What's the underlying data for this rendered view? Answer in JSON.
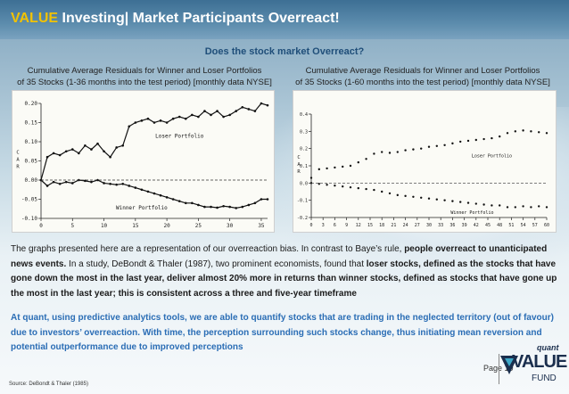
{
  "header": {
    "title_accent": "VALUE",
    "title_rest": " Investing| Market Participants Overreact!"
  },
  "subtitle": "Does the stock market Overreact?",
  "captions": {
    "left_line1": "Cumulative Average Residuals for Winner and Loser Portfolios",
    "left_line2": "of 35 Stocks (1-36 months into the test period) [monthly data NYSE]",
    "right_line1": "Cumulative Average Residuals for Winner and Loser Portfolios",
    "right_line2": "of 35 Stocks (1-60 months into the test period) [monthly data NYSE]"
  },
  "chart_data": [
    {
      "type": "line",
      "ylabel": "C A R",
      "xlim": [
        0,
        36
      ],
      "ylim": [
        -0.1,
        0.2
      ],
      "xticks": [
        "0",
        "5",
        "10",
        "15",
        "20",
        "25",
        "30",
        "35"
      ],
      "xtick_values": [
        0,
        5,
        10,
        15,
        20,
        25,
        30,
        35
      ],
      "yticks": [
        "0.20",
        "0.15",
        "0.10",
        "0.05",
        "0.00",
        "-0.05",
        "-0.10"
      ],
      "ytick_values": [
        0.2,
        0.15,
        0.1,
        0.05,
        0.0,
        -0.05,
        -0.1
      ],
      "annotations": [
        {
          "text": "Loser Portfolio",
          "x": 22,
          "y": 0.11
        },
        {
          "text": "Winner Portfolio",
          "x": 16,
          "y": -0.077
        }
      ],
      "series": [
        {
          "name": "Loser Portfolio",
          "style": "line",
          "x": [
            0,
            1,
            2,
            3,
            4,
            5,
            6,
            7,
            8,
            9,
            10,
            11,
            12,
            13,
            14,
            15,
            16,
            17,
            18,
            19,
            20,
            21,
            22,
            23,
            24,
            25,
            26,
            27,
            28,
            29,
            30,
            31,
            32,
            33,
            34,
            35,
            36
          ],
          "values": [
            0,
            0.06,
            0.07,
            0.065,
            0.075,
            0.08,
            0.07,
            0.09,
            0.08,
            0.095,
            0.075,
            0.06,
            0.085,
            0.09,
            0.14,
            0.15,
            0.155,
            0.16,
            0.15,
            0.155,
            0.15,
            0.16,
            0.165,
            0.16,
            0.17,
            0.165,
            0.18,
            0.17,
            0.18,
            0.165,
            0.17,
            0.18,
            0.19,
            0.185,
            0.18,
            0.2,
            0.195
          ]
        },
        {
          "name": "Winner Portfolio",
          "style": "line",
          "x": [
            0,
            1,
            2,
            3,
            4,
            5,
            6,
            7,
            8,
            9,
            10,
            11,
            12,
            13,
            14,
            15,
            16,
            17,
            18,
            19,
            20,
            21,
            22,
            23,
            24,
            25,
            26,
            27,
            28,
            29,
            30,
            31,
            32,
            33,
            34,
            35,
            36
          ],
          "values": [
            0,
            -0.015,
            -0.005,
            -0.01,
            -0.005,
            -0.008,
            0,
            -0.002,
            -0.005,
            0,
            -0.008,
            -0.01,
            -0.012,
            -0.01,
            -0.015,
            -0.02,
            -0.025,
            -0.03,
            -0.035,
            -0.04,
            -0.045,
            -0.05,
            -0.055,
            -0.06,
            -0.06,
            -0.065,
            -0.07,
            -0.07,
            -0.072,
            -0.068,
            -0.07,
            -0.073,
            -0.07,
            -0.065,
            -0.06,
            -0.05,
            -0.05
          ]
        },
        {
          "name": "",
          "style": "baseline",
          "x": [
            0,
            36
          ],
          "values": [
            0,
            0
          ]
        }
      ]
    },
    {
      "type": "line",
      "ylabel": "C A R",
      "xlim": [
        0,
        60
      ],
      "ylim": [
        -0.2,
        0.4
      ],
      "xticks": [
        "0",
        "3",
        "6",
        "9",
        "12",
        "15",
        "18",
        "21",
        "24",
        "27",
        "30",
        "33",
        "36",
        "39",
        "42",
        "45",
        "48",
        "51",
        "54",
        "57",
        "60"
      ],
      "xtick_values": [
        0,
        3,
        6,
        9,
        12,
        15,
        18,
        21,
        24,
        27,
        30,
        33,
        36,
        39,
        42,
        45,
        48,
        51,
        54,
        57,
        60
      ],
      "yticks": [
        "0.4",
        "0.3",
        "0.2",
        "0.1",
        "0.0",
        "-0.1",
        "-0.2"
      ],
      "ytick_values": [
        0.4,
        0.3,
        0.2,
        0.1,
        0.0,
        -0.1,
        -0.2
      ],
      "annotations": [
        {
          "text": "Loser Portfolio",
          "x": 46,
          "y": 0.15
        },
        {
          "text": "Winner Portfolio",
          "x": 41,
          "y": -0.18
        }
      ],
      "series": [
        {
          "name": "Loser Portfolio",
          "style": "dots",
          "x": [
            0,
            2,
            4,
            6,
            8,
            10,
            12,
            14,
            16,
            18,
            20,
            22,
            24,
            26,
            28,
            30,
            32,
            34,
            36,
            38,
            40,
            42,
            44,
            46,
            48,
            50,
            52,
            54,
            56,
            58,
            60
          ],
          "values": [
            0.03,
            0.08,
            0.085,
            0.09,
            0.095,
            0.1,
            0.12,
            0.14,
            0.17,
            0.18,
            0.175,
            0.18,
            0.19,
            0.195,
            0.2,
            0.21,
            0.215,
            0.22,
            0.23,
            0.24,
            0.245,
            0.25,
            0.255,
            0.26,
            0.27,
            0.29,
            0.3,
            0.305,
            0.3,
            0.295,
            0.29
          ]
        },
        {
          "name": "Winner Portfolio",
          "style": "dots",
          "x": [
            0,
            2,
            4,
            6,
            8,
            10,
            12,
            14,
            16,
            18,
            20,
            22,
            24,
            26,
            28,
            30,
            32,
            34,
            36,
            38,
            40,
            42,
            44,
            46,
            48,
            50,
            52,
            54,
            56,
            58,
            60
          ],
          "values": [
            0.0,
            -0.005,
            -0.01,
            -0.015,
            -0.02,
            -0.025,
            -0.03,
            -0.035,
            -0.04,
            -0.05,
            -0.06,
            -0.07,
            -0.075,
            -0.08,
            -0.085,
            -0.09,
            -0.095,
            -0.1,
            -0.105,
            -0.11,
            -0.115,
            -0.12,
            -0.125,
            -0.13,
            -0.13,
            -0.14,
            -0.14,
            -0.135,
            -0.14,
            -0.135,
            -0.14
          ]
        },
        {
          "name": "",
          "style": "baseline",
          "x": [
            0,
            60
          ],
          "values": [
            0,
            0
          ]
        }
      ]
    }
  ],
  "body": {
    "p1_a": "The graphs presented here are a representation of our overreaction bias. In contrast to Baye’s rule, ",
    "p1_b": "people overreact to unanticipated news events.",
    "p1_c": " In a study, DeBondt & Thaler (1987), two prominent economists, found that ",
    "p1_d": "loser stocks, defined as the stocks that have gone down the most in the last year, deliver almost 20% more in returns than winner stocks, defined as stocks that have gone up the most in the last year; this is consistent across a three and five-year timeframe",
    "p2": "At quant, using predictive analytics tools, we are able to quantify stocks that are trading in the neglected territory (out of favour) due to investors’ overreaction. With time, the perception surrounding such stocks change, thus initiating mean reversion and potential outperformance due to improved perceptions"
  },
  "footer": {
    "page": "Page 10",
    "source": "Source: DeBondt & Thaler (1985)"
  },
  "logo": {
    "quant": "quant",
    "value": "VALUE",
    "fund": "FUND"
  },
  "colors": {
    "accent": "#f2c200",
    "brand_blue": "#1f4e79",
    "highlight_blue": "#2a6db5"
  }
}
